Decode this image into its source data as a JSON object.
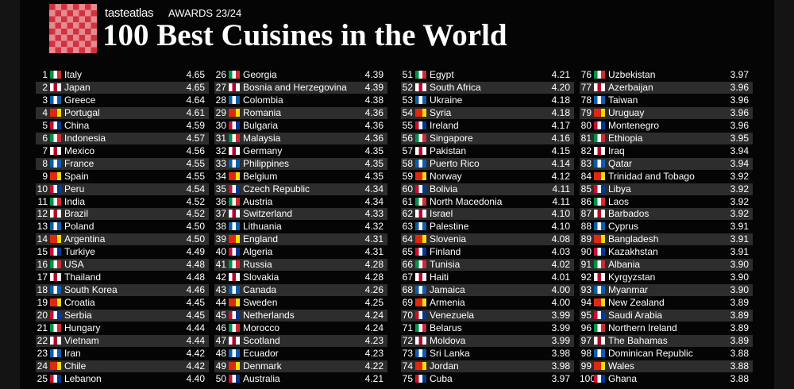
{
  "header": {
    "brand": "tasteatlas",
    "award": "AWARDS 23/24",
    "title": "100 Best Cuisines in the World"
  },
  "table": {
    "rows": [
      [
        1,
        "Italy",
        "4.65"
      ],
      [
        2,
        "Japan",
        "4.65"
      ],
      [
        3,
        "Greece",
        "4.64"
      ],
      [
        4,
        "Portugal",
        "4.61"
      ],
      [
        5,
        "China",
        "4.59"
      ],
      [
        6,
        "Indonesia",
        "4.57"
      ],
      [
        7,
        "Mexico",
        "4.56"
      ],
      [
        8,
        "France",
        "4.55"
      ],
      [
        9,
        "Spain",
        "4.55"
      ],
      [
        10,
        "Peru",
        "4.54"
      ],
      [
        11,
        "India",
        "4.52"
      ],
      [
        12,
        "Brazil",
        "4.52"
      ],
      [
        13,
        "Poland",
        "4.50"
      ],
      [
        14,
        "Argentina",
        "4.50"
      ],
      [
        15,
        "Turkiye",
        "4.49"
      ],
      [
        16,
        "USA",
        "4.48"
      ],
      [
        17,
        "Thailand",
        "4.48"
      ],
      [
        18,
        "South Korea",
        "4.46"
      ],
      [
        19,
        "Croatia",
        "4.45"
      ],
      [
        20,
        "Serbia",
        "4.45"
      ],
      [
        21,
        "Hungary",
        "4.44"
      ],
      [
        22,
        "Vietnam",
        "4.44"
      ],
      [
        23,
        "Iran",
        "4.42"
      ],
      [
        24,
        "Chile",
        "4.42"
      ],
      [
        25,
        "Lebanon",
        "4.40"
      ],
      [
        26,
        "Georgia",
        "4.39"
      ],
      [
        27,
        "Bosnia and Herzegovina",
        "4.39"
      ],
      [
        28,
        "Colombia",
        "4.38"
      ],
      [
        29,
        "Romania",
        "4.36"
      ],
      [
        30,
        "Bulgaria",
        "4.36"
      ],
      [
        31,
        "Malaysia",
        "4.36"
      ],
      [
        32,
        "Germany",
        "4.35"
      ],
      [
        33,
        "Philippines",
        "4.35"
      ],
      [
        34,
        "Belgium",
        "4.35"
      ],
      [
        35,
        "Czech Republic",
        "4.34"
      ],
      [
        36,
        "Austria",
        "4.34"
      ],
      [
        37,
        "Switzerland",
        "4.33"
      ],
      [
        38,
        "Lithuania",
        "4.32"
      ],
      [
        39,
        "England",
        "4.31"
      ],
      [
        40,
        "Algeria",
        "4.31"
      ],
      [
        41,
        "Russia",
        "4.28"
      ],
      [
        42,
        "Slovakia",
        "4.28"
      ],
      [
        43,
        "Canada",
        "4.26"
      ],
      [
        44,
        "Sweden",
        "4.25"
      ],
      [
        45,
        "Netherlands",
        "4.24"
      ],
      [
        46,
        "Morocco",
        "4.24"
      ],
      [
        47,
        "Scotland",
        "4.23"
      ],
      [
        48,
        "Ecuador",
        "4.23"
      ],
      [
        49,
        "Denmark",
        "4.22"
      ],
      [
        50,
        "Australia",
        "4.21"
      ],
      [
        51,
        "Egypt",
        "4.21"
      ],
      [
        52,
        "South Africa",
        "4.20"
      ],
      [
        53,
        "Ukraine",
        "4.18"
      ],
      [
        54,
        "Syria",
        "4.18"
      ],
      [
        55,
        "Ireland",
        "4.17"
      ],
      [
        56,
        "Singapore",
        "4.16"
      ],
      [
        57,
        "Pakistan",
        "4.15"
      ],
      [
        58,
        "Puerto Rico",
        "4.14"
      ],
      [
        59,
        "Norway",
        "4.12"
      ],
      [
        60,
        "Bolivia",
        "4.11"
      ],
      [
        61,
        "North Macedonia",
        "4.11"
      ],
      [
        62,
        "Israel",
        "4.10"
      ],
      [
        63,
        "Palestine",
        "4.10"
      ],
      [
        64,
        "Slovenia",
        "4.08"
      ],
      [
        65,
        "Finland",
        "4.03"
      ],
      [
        66,
        "Tunisia",
        "4.02"
      ],
      [
        67,
        "Haiti",
        "4.01"
      ],
      [
        68,
        "Jamaica",
        "4.00"
      ],
      [
        69,
        "Armenia",
        "4.00"
      ],
      [
        70,
        "Venezuela",
        "3.99"
      ],
      [
        71,
        "Belarus",
        "3.99"
      ],
      [
        72,
        "Moldova",
        "3.99"
      ],
      [
        73,
        "Sri Lanka",
        "3.98"
      ],
      [
        74,
        "Jordan",
        "3.98"
      ],
      [
        75,
        "Cuba",
        "3.97"
      ],
      [
        76,
        "Uzbekistan",
        "3.97"
      ],
      [
        77,
        "Azerbaijan",
        "3.96"
      ],
      [
        78,
        "Taiwan",
        "3.96"
      ],
      [
        79,
        "Uruguay",
        "3.96"
      ],
      [
        80,
        "Montenegro",
        "3.96"
      ],
      [
        81,
        "Ethiopia",
        "3.95"
      ],
      [
        82,
        "Iraq",
        "3.94"
      ],
      [
        83,
        "Qatar",
        "3.94"
      ],
      [
        84,
        "Trinidad and Tobago",
        "3.92"
      ],
      [
        85,
        "Libya",
        "3.92"
      ],
      [
        86,
        "Laos",
        "3.92"
      ],
      [
        87,
        "Barbados",
        "3.92"
      ],
      [
        88,
        "Cyprus",
        "3.91"
      ],
      [
        89,
        "Bangladesh",
        "3.91"
      ],
      [
        90,
        "Kazakhstan",
        "3.91"
      ],
      [
        91,
        "Albania",
        "3.90"
      ],
      [
        92,
        "Kyrgyzstan",
        "3.90"
      ],
      [
        93,
        "Myanmar",
        "3.90"
      ],
      [
        94,
        "New Zealand",
        "3.89"
      ],
      [
        95,
        "Saudi Arabia",
        "3.89"
      ],
      [
        96,
        "Northern Ireland",
        "3.89"
      ],
      [
        97,
        "The Bahamas",
        "3.89"
      ],
      [
        98,
        "Dominican Republic",
        "3.88"
      ],
      [
        99,
        "Wales",
        "3.88"
      ],
      [
        100,
        "Ghana",
        "3.88"
      ]
    ]
  }
}
